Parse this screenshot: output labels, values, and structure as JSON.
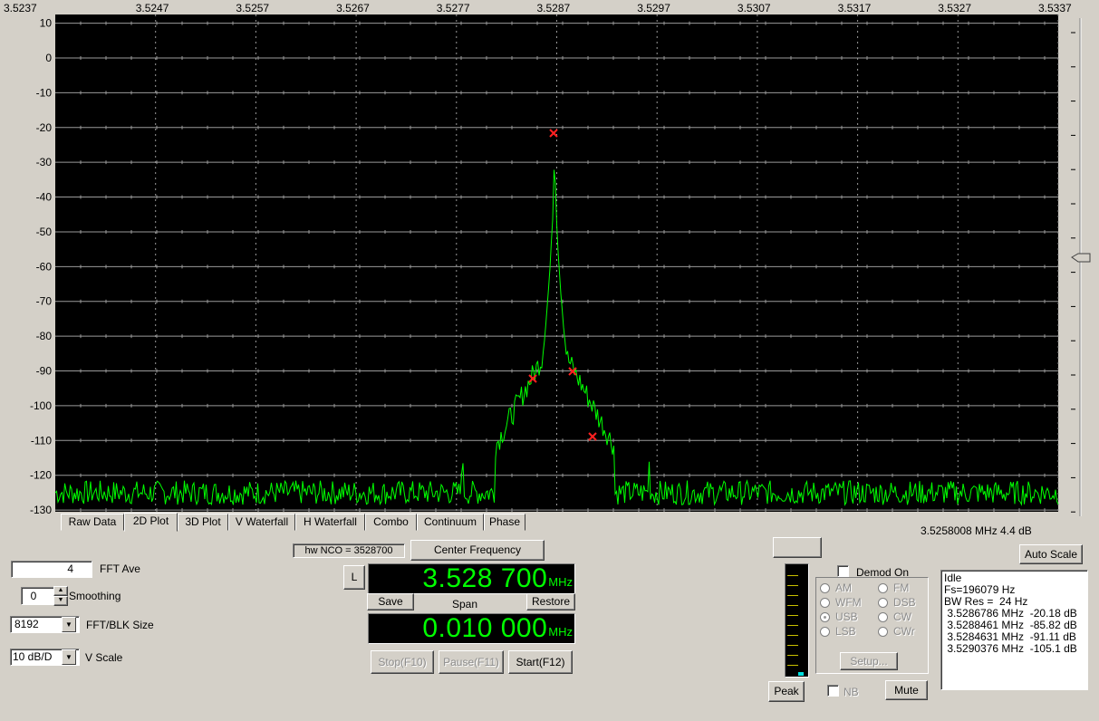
{
  "plot": {
    "x_ticks": [
      "3.5237",
      "3.5247",
      "3.5257",
      "3.5267",
      "3.5277",
      "3.5287",
      "3.5297",
      "3.5307",
      "3.5317",
      "3.5327",
      "3.5337"
    ],
    "y_ticks": [
      "10",
      "0",
      "-10",
      "-20",
      "-30",
      "-40",
      "-50",
      "-60",
      "-70",
      "-80",
      "-90",
      "-100",
      "-110",
      "-120",
      "-130"
    ],
    "trace_color": "#00ff00",
    "marker_color": "#ff2020",
    "markers": [
      {
        "freq_mhz": 3.5286786,
        "db": -20.18
      },
      {
        "freq_mhz": 3.5288461,
        "db": -85.82
      },
      {
        "freq_mhz": 3.5284631,
        "db": -91.11
      },
      {
        "freq_mhz": 3.5290376,
        "db": -105.1
      }
    ],
    "cursor_readout": "3.5258008 MHz  4.4 dB"
  },
  "tabs": [
    "Raw Data",
    "2D Plot",
    "3D Plot",
    "V Waterfall",
    "H Waterfall",
    "Combo",
    "Continuum",
    "Phase"
  ],
  "active_tab": "2D Plot",
  "fft": {
    "ave_value": "4",
    "ave_label": "FFT Ave",
    "smoothing_value": "0",
    "smoothing_label": "Smoothing",
    "blk_value": "8192",
    "blk_label": "FFT/BLK Size",
    "vscale_value": "10 dB/D",
    "vscale_label": "V Scale"
  },
  "tuning": {
    "hw_nco": "hw NCO = 3528700",
    "center_button": "Center Frequency",
    "l_button": "L",
    "freq_value": "3.528 700",
    "freq_unit": "MHz",
    "save": "Save",
    "span_label": "Span",
    "restore": "Restore",
    "span_value": "0.010 000",
    "span_unit": "MHz",
    "stop": "Stop(F10)",
    "pause": "Pause(F11)",
    "start": "Start(F12)"
  },
  "demod": {
    "demod_on_label": "Demod On",
    "modes": [
      [
        "AM",
        "FM"
      ],
      [
        "WFM",
        "DSB"
      ],
      [
        "USB",
        "CW"
      ],
      [
        "LSB",
        "CWr"
      ]
    ],
    "selected": "USB",
    "setup": "Setup...",
    "peak": "Peak",
    "nb": "NB",
    "mute": "Mute",
    "auto_scale": "Auto Scale"
  },
  "status": {
    "lines": [
      "Idle",
      "Fs=196079 Hz",
      "BW Res =  24 Hz",
      " 3.5286786 MHz  -20.18 dB",
      " 3.5288461 MHz  -85.82 dB",
      " 3.5284631 MHz  -91.11 dB",
      " 3.5290376 MHz  -105.1 dB"
    ]
  }
}
